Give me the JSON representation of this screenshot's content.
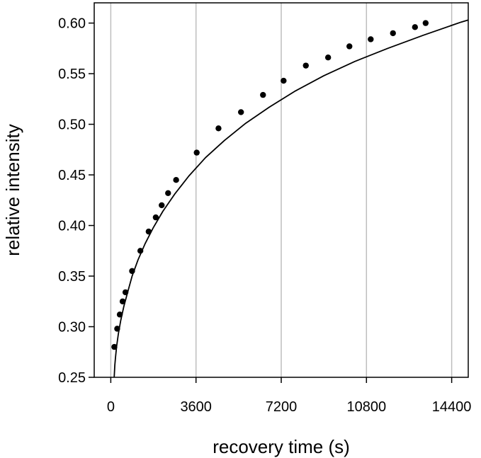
{
  "chart_data": {
    "type": "scatter",
    "title": "",
    "xlabel": "recovery time (s)",
    "ylabel": "relative intensity",
    "xlim": [
      -700,
      15100
    ],
    "ylim": [
      0.25,
      0.62
    ],
    "xticks": [
      0,
      3600,
      7200,
      10800,
      14400
    ],
    "xtick_labels": [
      "0",
      "3600",
      "7200",
      "10800",
      "14400"
    ],
    "yticks": [
      0.25,
      0.3,
      0.35,
      0.4,
      0.45,
      0.5,
      0.55,
      0.6
    ],
    "ytick_labels": [
      "0.25",
      "0.30",
      "0.35",
      "0.40",
      "0.45",
      "0.50",
      "0.55",
      "0.60"
    ],
    "grid": "vertical",
    "legend": "none",
    "series": [
      {
        "kind": "points",
        "x": [
          150,
          270,
          380,
          500,
          620,
          900,
          1250,
          1600,
          1900,
          2150,
          2420,
          2760,
          3630,
          4550,
          5500,
          6430,
          7300,
          8240,
          9180,
          10080,
          10980,
          11920,
          12850,
          13300
        ],
        "y": [
          0.28,
          0.298,
          0.312,
          0.325,
          0.334,
          0.355,
          0.375,
          0.394,
          0.408,
          0.42,
          0.432,
          0.445,
          0.472,
          0.496,
          0.512,
          0.529,
          0.543,
          0.558,
          0.566,
          0.577,
          0.584,
          0.59,
          0.596,
          0.6
        ]
      },
      {
        "kind": "fit-line",
        "x": [
          145,
          170,
          200,
          250,
          320,
          420,
          550,
          700,
          900,
          1150,
          1450,
          1800,
          2200,
          2700,
          3300,
          4000,
          4800,
          5700,
          6700,
          7800,
          9000,
          10300,
          11700,
          13200,
          14800,
          15100
        ],
        "y": [
          0.25,
          0.262,
          0.27,
          0.281,
          0.293,
          0.306,
          0.32,
          0.333,
          0.35,
          0.366,
          0.382,
          0.398,
          0.414,
          0.431,
          0.449,
          0.467,
          0.484,
          0.501,
          0.517,
          0.533,
          0.548,
          0.562,
          0.575,
          0.588,
          0.601,
          0.603
        ]
      }
    ]
  }
}
